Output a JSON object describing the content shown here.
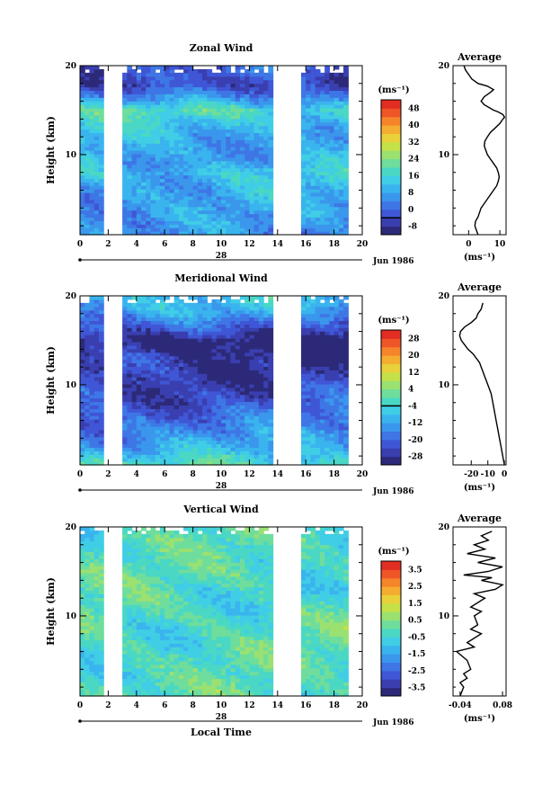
{
  "chart_data": [
    {
      "type": "heatmap",
      "title": "Zonal Wind",
      "ylabel": "Height (km)",
      "xlim": [
        0,
        20
      ],
      "ylim": [
        1,
        20
      ],
      "x_ticks": [
        0,
        2,
        4,
        6,
        8,
        10,
        12,
        14,
        16,
        18,
        20
      ],
      "y_ticks": [
        10,
        20
      ],
      "date_label": "Jun 1986",
      "day_label": "28",
      "gaps": [
        [
          1.8,
          3.1
        ],
        [
          13.7,
          15.8
        ]
      ],
      "data_end": 19.0,
      "colorbar": {
        "unit": "(ms⁻¹)",
        "levels": [
          -8,
          -4,
          0,
          4,
          8,
          12,
          16,
          20,
          24,
          28,
          32,
          36,
          40,
          44,
          48,
          52
        ],
        "labels": [
          "48",
          "40",
          "32",
          "24",
          "16",
          "8",
          "0",
          "-8"
        ],
        "zero_line": 0
      },
      "profile": {
        "title": "Average",
        "xlim": [
          -5,
          12
        ],
        "ylim": [
          1,
          20
        ],
        "x_ticks": [
          0,
          10
        ],
        "x_tick_labels": [
          "0",
          "10"
        ],
        "y_ticks": [
          10,
          20
        ],
        "unit": "(ms⁻¹)",
        "x": [
          3,
          2.5,
          2,
          2.2,
          3,
          3.5,
          4,
          5,
          6,
          7,
          8,
          9,
          9.5,
          9.8,
          9.5,
          9,
          8,
          7,
          6,
          5.5,
          5,
          5.2,
          6,
          7,
          8.5,
          10,
          11,
          11.5,
          11,
          9.5,
          8,
          6.5,
          5,
          4,
          5,
          7,
          8,
          6,
          3,
          1,
          0,
          -1,
          -1.5
        ],
        "y": [
          1,
          1.5,
          2,
          2.5,
          3,
          3.5,
          4,
          4.5,
          5,
          5.5,
          6,
          6.5,
          7,
          7.5,
          8,
          8.5,
          9,
          9.5,
          10,
          10.5,
          11,
          11.5,
          12,
          12.5,
          13,
          13.5,
          14,
          14.2,
          14.5,
          14.8,
          15,
          15.3,
          15.6,
          16,
          16.5,
          17,
          17.3,
          17.7,
          18,
          18.5,
          19,
          19.5,
          20
        ]
      },
      "field": {
        "heights": [
          1,
          2,
          3,
          4,
          5,
          6,
          7,
          8,
          9,
          10,
          11,
          12,
          13,
          14,
          15,
          16,
          17,
          18,
          19,
          20
        ],
        "values": [
          8,
          9,
          10,
          11,
          12,
          13,
          15,
          17,
          14,
          13,
          13,
          14,
          16,
          18,
          22,
          12,
          4,
          -2,
          1,
          2
        ]
      }
    },
    {
      "type": "heatmap",
      "title": "Meridional Wind",
      "ylabel": "Height (km)",
      "xlim": [
        0,
        20
      ],
      "ylim": [
        1,
        20
      ],
      "x_ticks": [
        0,
        2,
        4,
        6,
        8,
        10,
        12,
        14,
        16,
        18,
        20
      ],
      "y_ticks": [
        10,
        20
      ],
      "date_label": "Jun 1986",
      "day_label": "28",
      "gaps": [
        [
          1.8,
          3.1
        ],
        [
          13.7,
          15.8
        ]
      ],
      "data_end": 19.0,
      "colorbar": {
        "unit": "(ms⁻¹)",
        "levels": [
          -28,
          -24,
          -20,
          -16,
          -12,
          -8,
          -4,
          0,
          4,
          8,
          12,
          16,
          20,
          24,
          28,
          32
        ],
        "labels": [
          "28",
          "20",
          "12",
          "4",
          "-4",
          "-12",
          "-20",
          "-28"
        ],
        "zero_line": 0
      },
      "profile": {
        "title": "Average",
        "xlim": [
          -31,
          1
        ],
        "ylim": [
          1,
          20
        ],
        "x_ticks": [
          -20,
          -10,
          0
        ],
        "x_tick_labels": [
          "-20",
          "-10",
          "0"
        ],
        "y_ticks": [
          10,
          20
        ],
        "unit": "(ms⁻¹)",
        "x": [
          0,
          -0.5,
          -1,
          -1.5,
          -2,
          -3,
          -4,
          -5,
          -6,
          -7,
          -8,
          -9,
          -10,
          -11,
          -12,
          -13,
          -14,
          -15,
          -17,
          -19,
          -22,
          -24,
          -26,
          -27,
          -26.5,
          -24,
          -20,
          -17,
          -16,
          -14,
          -13
        ],
        "y": [
          1,
          1.5,
          2,
          2.5,
          3,
          4,
          5,
          6,
          7,
          8,
          9,
          9.5,
          10,
          10.5,
          11,
          11.5,
          12,
          12.5,
          13,
          13.5,
          14,
          14.5,
          15,
          15.5,
          16,
          16.5,
          17,
          17.5,
          18,
          18.5,
          19.2
        ]
      },
      "field": {
        "heights": [
          1,
          2,
          3,
          4,
          5,
          6,
          7,
          8,
          9,
          10,
          11,
          12,
          13,
          14,
          15,
          16,
          17,
          18,
          19,
          20
        ],
        "values": [
          2,
          -4,
          -8,
          -10,
          -12,
          -14,
          -16,
          -18,
          -19,
          -20,
          -21,
          -22,
          -23,
          -26,
          -28,
          -22,
          -16,
          -10,
          -6,
          -4
        ]
      }
    },
    {
      "type": "heatmap",
      "title": "Vertical Wind",
      "ylabel": "Height (km)",
      "xlabel": "Local Time",
      "xlim": [
        0,
        20
      ],
      "ylim": [
        1,
        20
      ],
      "x_ticks": [
        0,
        2,
        4,
        6,
        8,
        10,
        12,
        14,
        16,
        18,
        20
      ],
      "y_ticks": [
        10,
        20
      ],
      "date_label": "Jun 1986",
      "day_label": "28",
      "gaps": [
        [
          1.8,
          3.1
        ],
        [
          13.7,
          15.8
        ]
      ],
      "data_end": 19.0,
      "colorbar": {
        "unit": "(ms⁻¹)",
        "levels": [
          -3.5,
          -3,
          -2.5,
          -2,
          -1.5,
          -1,
          -0.5,
          0,
          0.5,
          1,
          1.5,
          2,
          2.5,
          3,
          3.5,
          4
        ],
        "labels": [
          "3.5",
          "2.5",
          "1.5",
          "0.5",
          "-0.5",
          "-1.5",
          "-2.5",
          "-3.5"
        ],
        "zero_line": null
      },
      "profile": {
        "title": "Average",
        "xlim": [
          -0.06,
          0.09
        ],
        "ylim": [
          1,
          20
        ],
        "x_ticks": [
          -0.04,
          0.08
        ],
        "x_tick_labels": [
          "-0.04",
          "0.08"
        ],
        "y_ticks": [
          10,
          20
        ],
        "unit": "(ms⁻¹)",
        "x": [
          -0.04,
          -0.03,
          -0.04,
          -0.02,
          -0.03,
          -0.01,
          -0.02,
          -0.05,
          0.0,
          -0.02,
          0.02,
          -0.01,
          0.01,
          0.0,
          0.02,
          -0.01,
          0.03,
          0.0,
          0.06,
          0.08,
          0.02,
          0.05,
          -0.03,
          0.04,
          0.08,
          0.01,
          0.06,
          -0.02,
          0.03,
          0.0,
          0.04,
          0.02,
          0.05
        ],
        "y": [
          1,
          2,
          2.5,
          3,
          3.5,
          4,
          5,
          6,
          6.5,
          7,
          8,
          8.5,
          9,
          10,
          10.5,
          11,
          12,
          12.5,
          13,
          13.5,
          14,
          14.3,
          14.6,
          15,
          15.5,
          16,
          16.5,
          17,
          17.5,
          18,
          18.5,
          19,
          19.5
        ]
      },
      "field": {
        "heights": [
          1,
          2,
          3,
          4,
          5,
          6,
          7,
          8,
          9,
          10,
          11,
          12,
          13,
          14,
          15,
          16,
          17,
          18,
          19,
          20
        ],
        "values": [
          0.2,
          0.3,
          0.2,
          0.3,
          0.4,
          0.3,
          0.4,
          0.3,
          0.4,
          0.4,
          0.3,
          0.3,
          0.2,
          0.3,
          0.3,
          0.2,
          0.2,
          0.3,
          0.3,
          0.2
        ]
      }
    }
  ],
  "palette": [
    "#2c2a78",
    "#3a3fb0",
    "#3f57d6",
    "#3f76e6",
    "#3a97ec",
    "#3ab4ee",
    "#40cde6",
    "#4ad8c4",
    "#6fdd9c",
    "#9ae172",
    "#c4e149",
    "#e8d13a",
    "#f4ad30",
    "#f5842a",
    "#ef5526",
    "#e22d22"
  ]
}
